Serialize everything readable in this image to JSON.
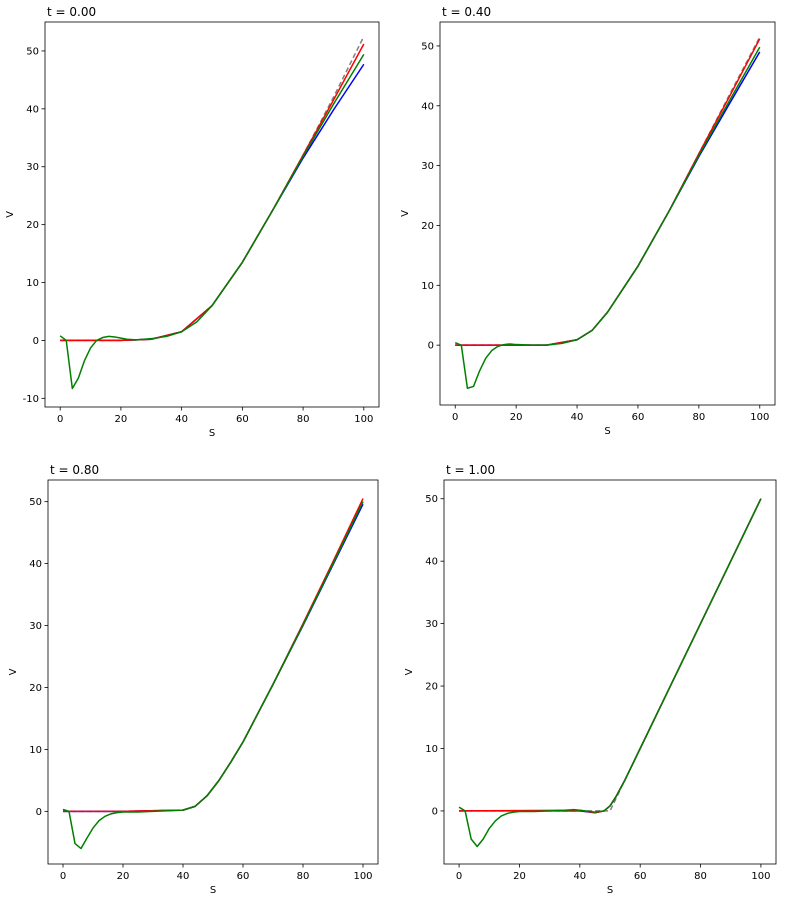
{
  "figure": {
    "background": "#ffffff"
  },
  "chart_data": [
    {
      "type": "line",
      "title": "t = 0.00",
      "xlabel": "S",
      "ylabel": "V",
      "xlim": [
        -5,
        105
      ],
      "ylim": [
        -11.5,
        55
      ],
      "xticks": [
        0,
        20,
        40,
        60,
        80,
        100
      ],
      "yticks": [
        -10,
        0,
        10,
        20,
        30,
        40,
        50
      ],
      "grid": false,
      "series": [
        {
          "color": "#808080",
          "dash": true,
          "x": [
            0,
            20,
            30,
            40,
            50,
            60,
            70,
            80,
            90,
            100
          ],
          "y": [
            0,
            0,
            0.2,
            1.5,
            6,
            13.5,
            22.5,
            32,
            42,
            52.5
          ]
        },
        {
          "color": "#0000ff",
          "x": [
            0,
            20,
            30,
            40,
            50,
            60,
            70,
            80,
            90,
            100
          ],
          "y": [
            0,
            0,
            0.2,
            1.5,
            6,
            13.5,
            22.5,
            31.5,
            39.8,
            47.7
          ]
        },
        {
          "color": "#ff0000",
          "x": [
            0,
            20,
            30,
            40,
            50,
            60,
            70,
            80,
            90,
            100
          ],
          "y": [
            0,
            0,
            0.2,
            1.5,
            6,
            13.5,
            22.5,
            32,
            41.5,
            51.2
          ]
        },
        {
          "color": "#008000",
          "x": [
            0,
            2,
            4,
            6,
            8,
            10,
            12,
            14,
            16,
            18,
            20,
            22,
            25,
            30,
            35,
            40,
            45,
            50,
            60,
            70,
            80,
            90,
            100
          ],
          "y": [
            0.8,
            0,
            -8.3,
            -6.5,
            -3.5,
            -1.3,
            0,
            0.5,
            0.7,
            0.6,
            0.4,
            0.2,
            0.1,
            0.3,
            0.7,
            1.5,
            3.2,
            6,
            13.5,
            22.5,
            31.8,
            40.8,
            49.4
          ]
        }
      ]
    },
    {
      "type": "line",
      "title": "t = 0.40",
      "xlabel": "S",
      "ylabel": "V",
      "xlim": [
        -5,
        105
      ],
      "ylim": [
        -10,
        54
      ],
      "xticks": [
        0,
        20,
        40,
        60,
        80,
        100
      ],
      "yticks": [
        0,
        10,
        20,
        30,
        40,
        50
      ],
      "grid": false,
      "series": [
        {
          "color": "#808080",
          "dash": true,
          "x": [
            0,
            20,
            30,
            40,
            45,
            50,
            60,
            70,
            80,
            90,
            100
          ],
          "y": [
            0,
            0,
            0,
            0.9,
            2.5,
            5.5,
            13.2,
            22.2,
            32,
            41.8,
            51.5
          ]
        },
        {
          "color": "#0000ff",
          "x": [
            0,
            20,
            30,
            40,
            45,
            50,
            60,
            70,
            80,
            90,
            100
          ],
          "y": [
            0,
            0,
            0,
            0.9,
            2.5,
            5.5,
            13.2,
            22.2,
            31.5,
            40.3,
            49
          ]
        },
        {
          "color": "#ff0000",
          "x": [
            0,
            20,
            30,
            40,
            45,
            50,
            60,
            70,
            80,
            90,
            100
          ],
          "y": [
            0,
            0,
            0,
            0.9,
            2.5,
            5.5,
            13.2,
            22.2,
            32,
            41.5,
            51.2
          ]
        },
        {
          "color": "#008000",
          "x": [
            0,
            2,
            4,
            6,
            8,
            10,
            12,
            14,
            16,
            18,
            20,
            25,
            30,
            35,
            40,
            45,
            50,
            60,
            70,
            80,
            90,
            100
          ],
          "y": [
            0.4,
            0,
            -7.2,
            -6.9,
            -4.3,
            -2.2,
            -0.9,
            -0.2,
            0.1,
            0.2,
            0.1,
            0,
            0,
            0.3,
            0.9,
            2.5,
            5.5,
            13.2,
            22.2,
            31.7,
            40.8,
            49.8
          ]
        }
      ]
    },
    {
      "type": "line",
      "title": "t = 0.80",
      "xlabel": "S",
      "ylabel": "V",
      "xlim": [
        -5,
        105
      ],
      "ylim": [
        -8.5,
        53.5
      ],
      "xticks": [
        0,
        20,
        40,
        60,
        80,
        100
      ],
      "yticks": [
        0,
        10,
        20,
        30,
        40,
        50
      ],
      "grid": false,
      "series": [
        {
          "color": "#808080",
          "dash": true,
          "x": [
            0,
            20,
            40,
            44,
            48,
            52,
            56,
            60,
            70,
            80,
            90,
            100
          ],
          "y": [
            0,
            0,
            0.2,
            0.8,
            2.5,
            5,
            8,
            11.2,
            20.5,
            30.2,
            40.1,
            50
          ]
        },
        {
          "color": "#0000ff",
          "x": [
            0,
            20,
            40,
            44,
            48,
            52,
            56,
            60,
            70,
            80,
            90,
            100
          ],
          "y": [
            0,
            0,
            0.2,
            0.8,
            2.5,
            5,
            8,
            11.2,
            20.5,
            30,
            39.8,
            49.6
          ]
        },
        {
          "color": "#ff0000",
          "x": [
            0,
            20,
            40,
            44,
            48,
            52,
            56,
            60,
            70,
            80,
            90,
            100
          ],
          "y": [
            0,
            0,
            0.2,
            0.8,
            2.5,
            5,
            8,
            11.2,
            20.5,
            30.3,
            40.3,
            50.5
          ]
        },
        {
          "color": "#008000",
          "x": [
            0,
            2,
            4,
            6,
            8,
            10,
            12,
            14,
            16,
            18,
            20,
            25,
            30,
            35,
            40,
            44,
            48,
            52,
            56,
            60,
            70,
            80,
            90,
            100
          ],
          "y": [
            0.3,
            0,
            -5.2,
            -6,
            -4.3,
            -2.7,
            -1.5,
            -0.8,
            -0.4,
            -0.2,
            -0.1,
            -0.1,
            0,
            0.1,
            0.2,
            0.8,
            2.5,
            5,
            8,
            11.2,
            20.5,
            30.1,
            40,
            50
          ]
        }
      ]
    },
    {
      "type": "line",
      "title": "t = 1.00",
      "xlabel": "S",
      "ylabel": "V",
      "xlim": [
        -5,
        105
      ],
      "ylim": [
        -8.5,
        53
      ],
      "xticks": [
        0,
        20,
        40,
        60,
        80,
        100
      ],
      "yticks": [
        0,
        10,
        20,
        30,
        40,
        50
      ],
      "grid": false,
      "series": [
        {
          "color": "#808080",
          "dash": true,
          "x": [
            0,
            50,
            60,
            70,
            80,
            90,
            100
          ],
          "y": [
            0,
            0,
            10,
            20,
            30,
            40,
            50
          ]
        },
        {
          "color": "#0000ff",
          "x": [
            0,
            40,
            45,
            48,
            50,
            52,
            55,
            60,
            70,
            80,
            90,
            100
          ],
          "y": [
            0,
            0,
            -0.3,
            0,
            0.8,
            2.3,
            5,
            10,
            20,
            30,
            40,
            50
          ]
        },
        {
          "color": "#ff0000",
          "x": [
            0,
            40,
            45,
            48,
            50,
            52,
            55,
            60,
            70,
            80,
            90,
            100
          ],
          "y": [
            0,
            0.1,
            -0.3,
            0,
            0.8,
            2.3,
            5,
            10,
            20,
            30,
            40,
            50
          ]
        },
        {
          "color": "#008000",
          "x": [
            0,
            2,
            4,
            6,
            8,
            10,
            12,
            14,
            16,
            18,
            20,
            25,
            30,
            35,
            38,
            40,
            45,
            48,
            50,
            52,
            55,
            60,
            70,
            80,
            90,
            100
          ],
          "y": [
            0.6,
            0,
            -4.5,
            -5.7,
            -4.5,
            -2.8,
            -1.6,
            -0.8,
            -0.4,
            -0.2,
            -0.1,
            -0.1,
            0,
            0.1,
            0.2,
            0.1,
            -0.2,
            0,
            0.8,
            2.3,
            5,
            10,
            20,
            30,
            40,
            50
          ]
        }
      ]
    }
  ]
}
